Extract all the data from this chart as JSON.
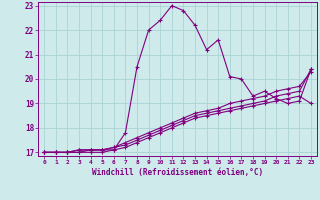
{
  "xlabel": "Windchill (Refroidissement éolien,°C)",
  "bg_color": "#ceeaea",
  "line_color": "#800080",
  "grid_color": "#aad4d4",
  "xmin": 0,
  "xmax": 23,
  "ymin": 17,
  "ymax": 23,
  "series": [
    [
      17.0,
      17.0,
      17.0,
      17.0,
      17.1,
      17.1,
      17.1,
      17.8,
      20.5,
      22.0,
      22.4,
      23.0,
      22.8,
      22.2,
      21.2,
      21.6,
      20.1,
      20.0,
      19.3,
      19.5,
      19.2,
      19.0,
      19.1,
      20.4
    ],
    [
      17.0,
      17.0,
      17.0,
      17.1,
      17.1,
      17.1,
      17.2,
      17.4,
      17.6,
      17.8,
      18.0,
      18.2,
      18.4,
      18.6,
      18.7,
      18.8,
      19.0,
      19.1,
      19.2,
      19.3,
      19.5,
      19.6,
      19.7,
      20.3
    ],
    [
      17.0,
      17.0,
      17.0,
      17.1,
      17.1,
      17.1,
      17.2,
      17.3,
      17.5,
      17.7,
      17.9,
      18.1,
      18.3,
      18.5,
      18.6,
      18.7,
      18.8,
      18.9,
      19.0,
      19.1,
      19.3,
      19.4,
      19.5,
      20.4
    ],
    [
      17.0,
      17.0,
      17.0,
      17.0,
      17.0,
      17.0,
      17.1,
      17.2,
      17.4,
      17.6,
      17.8,
      18.0,
      18.2,
      18.4,
      18.5,
      18.6,
      18.7,
      18.8,
      18.9,
      19.0,
      19.1,
      19.2,
      19.3,
      19.0
    ]
  ]
}
